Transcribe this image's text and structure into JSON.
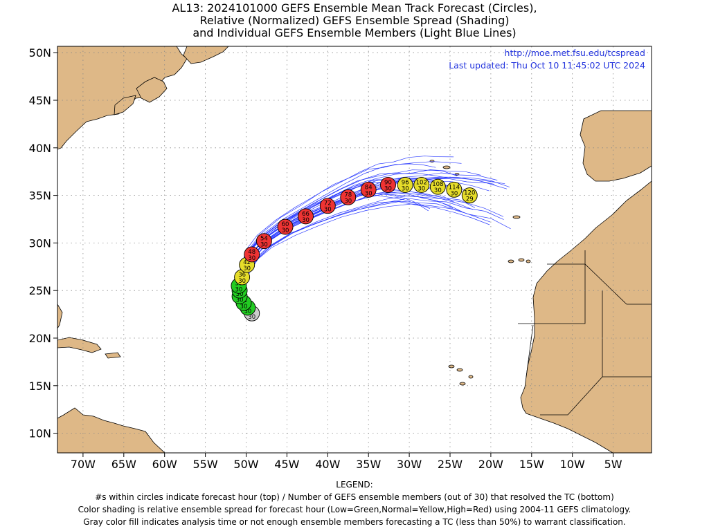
{
  "title": {
    "line1": "AL13: 2024101000 GEFS Ensemble Mean Track Forecast (Circles),",
    "line2": "Relative (Normalized) GEFS Ensemble Spread (Shading)",
    "line3": "and Individual GEFS Ensemble Members (Light Blue Lines)"
  },
  "credit": {
    "url": "http://moe.met.fsu.edu/tcspread",
    "updated": "Last updated: Thu Oct 10 11:45:02 UTC 2024"
  },
  "legend": {
    "heading": "LEGEND:",
    "line1": "#s within circles indicate forecast hour (top) / Number of GEFS ensemble members (out of 30) that resolved the TC (bottom)",
    "line2": "Color shading is relative ensemble spread for forecast hour (Low=Green,Normal=Yellow,High=Red) using 2004-11 GEFS climatology.",
    "line3": "Gray color fill indicates analysis time or not enough ensemble members forecasting a TC (less than 50%) to warrant classification."
  },
  "colors": {
    "land": "#deb887",
    "ocean": "#ffffff",
    "member_line": "#2b3bff",
    "low_spread": "#22cc22",
    "normal_spread": "#e6dd2a",
    "high_spread": "#ee3333",
    "analysis": "#cccccc",
    "credit_text": "#2233dd"
  },
  "axes": {
    "x_ticks": [
      "70W",
      "65W",
      "60W",
      "55W",
      "50W",
      "45W",
      "40W",
      "35W",
      "30W",
      "25W",
      "20W",
      "15W",
      "10W",
      "5W"
    ],
    "y_ticks": [
      "50N",
      "45N",
      "40N",
      "35N",
      "30N",
      "25N",
      "20N",
      "15N",
      "10N"
    ],
    "lon_range": [
      -73.2,
      0.0
    ],
    "lat_range": [
      8.0,
      51.0
    ],
    "grid": true
  },
  "track": [
    {
      "hour": "0",
      "members": "30",
      "lon": -49.3,
      "lat": 22.6,
      "spread": "analysis"
    },
    {
      "hour": "6",
      "members": "30",
      "lon": -49.8,
      "lat": 23.2,
      "spread": "low"
    },
    {
      "hour": "12",
      "members": "30",
      "lon": -50.3,
      "lat": 23.7,
      "spread": "low"
    },
    {
      "hour": "18",
      "members": "30",
      "lon": -50.8,
      "lat": 24.4,
      "spread": "low"
    },
    {
      "hour": "24",
      "members": "30",
      "lon": -50.8,
      "lat": 25.0,
      "spread": "low"
    },
    {
      "hour": "30",
      "members": "30",
      "lon": -50.9,
      "lat": 25.5,
      "spread": "low"
    },
    {
      "hour": "36",
      "members": "30",
      "lon": -50.5,
      "lat": 26.4,
      "spread": "normal"
    },
    {
      "hour": "42",
      "members": "30",
      "lon": -49.9,
      "lat": 27.7,
      "spread": "normal"
    },
    {
      "hour": "48",
      "members": "30",
      "lon": -49.3,
      "lat": 28.8,
      "spread": "high"
    },
    {
      "hour": "54",
      "members": "30",
      "lon": -47.8,
      "lat": 30.2,
      "spread": "high"
    },
    {
      "hour": "60",
      "members": "30",
      "lon": -45.2,
      "lat": 31.7,
      "spread": "high"
    },
    {
      "hour": "66",
      "members": "30",
      "lon": -42.7,
      "lat": 32.8,
      "spread": "high"
    },
    {
      "hour": "72",
      "members": "30",
      "lon": -40.0,
      "lat": 33.9,
      "spread": "high"
    },
    {
      "hour": "78",
      "members": "30",
      "lon": -37.5,
      "lat": 34.8,
      "spread": "high"
    },
    {
      "hour": "84",
      "members": "30",
      "lon": -35.0,
      "lat": 35.6,
      "spread": "high"
    },
    {
      "hour": "90",
      "members": "30",
      "lon": -32.6,
      "lat": 36.1,
      "spread": "high"
    },
    {
      "hour": "96",
      "members": "30",
      "lon": -30.5,
      "lat": 36.1,
      "spread": "normal"
    },
    {
      "hour": "102",
      "members": "30",
      "lon": -28.5,
      "lat": 36.1,
      "spread": "normal"
    },
    {
      "hour": "108",
      "members": "30",
      "lon": -26.5,
      "lat": 35.9,
      "spread": "normal"
    },
    {
      "hour": "114",
      "members": "30",
      "lon": -24.5,
      "lat": 35.6,
      "spread": "normal"
    },
    {
      "hour": "120",
      "members": "29",
      "lon": -22.6,
      "lat": 35.0,
      "spread": "normal"
    }
  ]
}
